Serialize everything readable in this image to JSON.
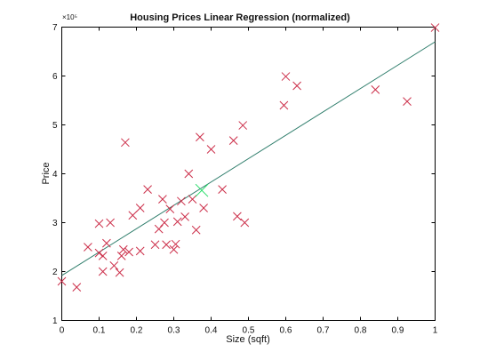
{
  "chart_data": {
    "type": "scatter",
    "title": "Housing Prices Linear Regression (normalized)",
    "xlabel": "Size (sqft)",
    "ylabel": "Price",
    "y_multiplier_label": "×10⁵",
    "xlim": [
      0,
      1
    ],
    "ylim": [
      100000,
      700000
    ],
    "x_ticks": [
      0,
      0.1,
      0.2,
      0.3,
      0.4,
      0.5,
      0.6,
      0.7,
      0.8,
      0.9,
      1
    ],
    "x_tick_labels": [
      "0",
      "0.1",
      "0.2",
      "0.3",
      "0.4",
      "0.5",
      "0.6",
      "0.7",
      "0.8",
      "0.9",
      "1"
    ],
    "y_ticks": [
      100000,
      200000,
      300000,
      400000,
      500000,
      600000,
      700000
    ],
    "y_tick_labels": [
      "1",
      "2",
      "3",
      "4",
      "5",
      "6",
      "7"
    ],
    "grid": false,
    "colors": {
      "points": "#cc2f4a",
      "line": "#2e7d6b",
      "mean_marker": "#22dd66",
      "axis": "#000000"
    },
    "series": [
      {
        "type": "scatter",
        "marker": "x",
        "points": [
          [
            0.0,
            180000
          ],
          [
            0.04,
            168000
          ],
          [
            0.07,
            250000
          ],
          [
            0.1,
            298000
          ],
          [
            0.1,
            238000
          ],
          [
            0.11,
            200000
          ],
          [
            0.11,
            232000
          ],
          [
            0.12,
            258000
          ],
          [
            0.13,
            300000
          ],
          [
            0.14,
            212000
          ],
          [
            0.155,
            198000
          ],
          [
            0.16,
            232000
          ],
          [
            0.165,
            245000
          ],
          [
            0.17,
            464000
          ],
          [
            0.18,
            240000
          ],
          [
            0.19,
            315000
          ],
          [
            0.21,
            242000
          ],
          [
            0.21,
            330000
          ],
          [
            0.23,
            368000
          ],
          [
            0.25,
            255000
          ],
          [
            0.26,
            287000
          ],
          [
            0.27,
            348000
          ],
          [
            0.275,
            300000
          ],
          [
            0.28,
            255000
          ],
          [
            0.29,
            328000
          ],
          [
            0.3,
            245000
          ],
          [
            0.305,
            256000
          ],
          [
            0.31,
            302000
          ],
          [
            0.32,
            344000
          ],
          [
            0.33,
            312000
          ],
          [
            0.34,
            400000
          ],
          [
            0.35,
            348000
          ],
          [
            0.36,
            285000
          ],
          [
            0.37,
            475000
          ],
          [
            0.38,
            330000
          ],
          [
            0.4,
            450000
          ],
          [
            0.43,
            368000
          ],
          [
            0.46,
            468000
          ],
          [
            0.47,
            313000
          ],
          [
            0.485,
            499000
          ],
          [
            0.49,
            300000
          ],
          [
            0.595,
            540000
          ],
          [
            0.6,
            599000
          ],
          [
            0.63,
            580000
          ],
          [
            0.84,
            572000
          ],
          [
            0.925,
            548000
          ],
          [
            1.0,
            699000
          ]
        ]
      },
      {
        "type": "line",
        "points": [
          [
            0,
            192000
          ],
          [
            1,
            670000
          ]
        ]
      },
      {
        "type": "point",
        "marker": "x",
        "points": [
          [
            0.375,
            366000
          ]
        ]
      }
    ]
  }
}
